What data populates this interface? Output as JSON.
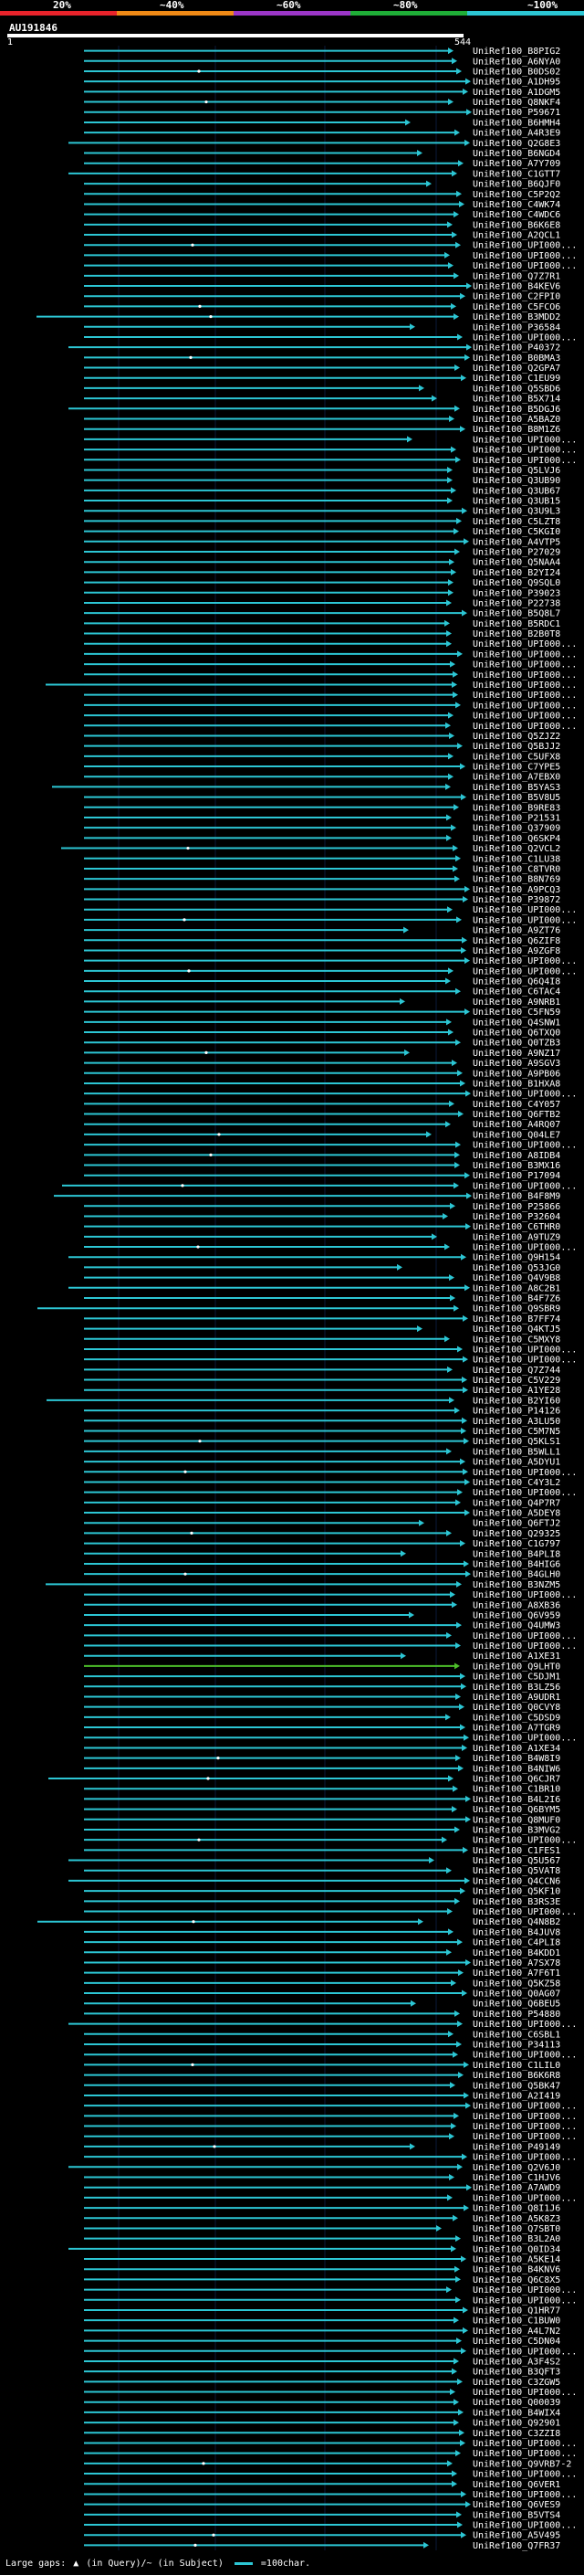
{
  "scale": {
    "labels": [
      "20%",
      "~40%",
      "~60%",
      "~80%",
      "~100%"
    ],
    "colors": [
      "#e8232b",
      "#f08a16",
      "#9b36c7",
      "#1fae37",
      "#2cc6d4"
    ]
  },
  "query": {
    "name": "AU191846",
    "start": "1",
    "end": "544"
  },
  "colors": {
    "hit_line": "#2cc6d4",
    "hit_line_green": "#4dbf2a",
    "background": "#000000",
    "grid": "#0a1a3a"
  },
  "footer": {
    "gaps_label": "Large gaps:",
    "gaps_text": "(in Query)/~ (in Subject)",
    "legend_text": "=100char."
  },
  "hits": [
    "UniRef100_B8PIG2",
    "UniRef100_A6NYA0",
    "UniRef100_B0DS02",
    "UniRef100_A1DH95",
    "UniRef100_A1DGM5",
    "UniRef100_Q8NKF4",
    "UniRef100_P59671",
    "UniRef100_B6HMH4",
    "UniRef100_A4R3E9",
    "UniRef100_Q2G8E3",
    "UniRef100_B6NGD4",
    "UniRef100_A7Y709",
    "UniRef100_C1GTT7",
    "UniRef100_B6QJF0",
    "UniRef100_C5P2Q2",
    "UniRef100_C4WK74",
    "UniRef100_C4WDC6",
    "UniRef100_B6K6E8",
    "UniRef100_A2QCL1",
    "UniRef100_UPI000...",
    "UniRef100_UPI000...",
    "UniRef100_UPI000...",
    "UniRef100_Q7Z7R1",
    "UniRef100_B4KEV6",
    "UniRef100_C2FPI0",
    "UniRef100_C5FCO6",
    "UniRef100_B3MDD2",
    "UniRef100_P36584",
    "UniRef100_UPI000...",
    "UniRef100_P40372",
    "UniRef100_B0BMA3",
    "UniRef100_Q2GPA7",
    "UniRef100_C1EU99",
    "UniRef100_Q5SBD6",
    "UniRef100_B5X714",
    "UniRef100_B5DGJ6",
    "UniRef100_A5BAZ0",
    "UniRef100_B8M1Z6",
    "UniRef100_UPI000...",
    "UniRef100_UPI000...",
    "UniRef100_UPI000...",
    "UniRef100_Q5LVJ6",
    "UniRef100_Q3UB90",
    "UniRef100_Q3UB67",
    "UniRef100_Q3UB15",
    "UniRef100_Q3U9L3",
    "UniRef100_C5LZT8",
    "UniRef100_C5KGI0",
    "UniRef100_A4VTP5",
    "UniRef100_P27029",
    "UniRef100_Q5NAA4",
    "UniRef100_B2YI24",
    "UniRef100_Q9SQL0",
    "UniRef100_P39023",
    "UniRef100_P22738",
    "UniRef100_B5Q8L7",
    "UniRef100_B5RDC1",
    "UniRef100_B2B0T8",
    "UniRef100_UPI000...",
    "UniRef100_UPI000...",
    "UniRef100_UPI000...",
    "UniRef100_UPI000...",
    "UniRef100_UPI000...",
    "UniRef100_UPI000...",
    "UniRef100_UPI000...",
    "UniRef100_UPI000...",
    "UniRef100_UPI000...",
    "UniRef100_Q5ZJZ2",
    "UniRef100_Q5BJJ2",
    "UniRef100_C5UFX8",
    "UniRef100_C7YPE5",
    "UniRef100_A7EBX0",
    "UniRef100_B5YAS3",
    "UniRef100_B5V8U5",
    "UniRef100_B9RE83",
    "UniRef100_P21531",
    "UniRef100_Q37909",
    "UniRef100_Q6SKP4",
    "UniRef100_Q2VCL2",
    "UniRef100_C1LU38",
    "UniRef100_C8TVR0",
    "UniRef100_B8N769",
    "UniRef100_A9PCQ3",
    "UniRef100_P39872",
    "UniRef100_UPI000...",
    "UniRef100_UPI000...",
    "UniRef100_A9ZT76",
    "UniRef100_Q6ZIF8",
    "UniRef100_A9ZGF8",
    "UniRef100_UPI000...",
    "UniRef100_UPI000...",
    "UniRef100_Q6Q4I8",
    "UniRef100_C6TAC4",
    "UniRef100_A9NRB1",
    "UniRef100_C5FN59",
    "UniRef100_Q4SNW1",
    "UniRef100_Q6TXQ0",
    "UniRef100_Q0TZB3",
    "UniRef100_A9NZ17",
    "UniRef100_A9SGV3",
    "UniRef100_A9PB06",
    "UniRef100_B1HXA8",
    "UniRef100_UPI000...",
    "UniRef100_C4Y057",
    "UniRef100_Q6FTB2",
    "UniRef100_A4RQ07",
    "UniRef100_Q04LE7",
    "UniRef100_UPI000...",
    "UniRef100_A8IDB4",
    "UniRef100_B3MX16",
    "UniRef100_P17094",
    "UniRef100_UPI000...",
    "UniRef100_B4F8M9",
    "UniRef100_P25866",
    "UniRef100_P32604",
    "UniRef100_C6THR0",
    "UniRef100_A9TUZ9",
    "UniRef100_UPI000...",
    "UniRef100_Q9H154",
    "UniRef100_Q53JG0",
    "UniRef100_Q4V9B8",
    "UniRef100_A8C2B1",
    "UniRef100_B4F7Z6",
    "UniRef100_Q9SBR9",
    "UniRef100_B7FF74",
    "UniRef100_Q4KTJ5",
    "UniRef100_C5MXY8",
    "UniRef100_UPI000...",
    "UniRef100_UPI000...",
    "UniRef100_Q7Z744",
    "UniRef100_C5V229",
    "UniRef100_A1YE28",
    "UniRef100_B2YI60",
    "UniRef100_P14126",
    "UniRef100_A3LU50",
    "UniRef100_C5M7N5",
    "UniRef100_Q5KLS1",
    "UniRef100_B5WLL1",
    "UniRef100_A5DYU1",
    "UniRef100_UPI000...",
    "UniRef100_C4Y3L2",
    "UniRef100_UPI000...",
    "UniRef100_Q4P7R7",
    "UniRef100_A5DEY8",
    "UniRef100_Q6FTJ2",
    "UniRef100_Q29325",
    "UniRef100_C1G797",
    "UniRef100_B4PLI8",
    "UniRef100_B4HIG6",
    "UniRef100_B4GLH0",
    "UniRef100_B3NZM5",
    "UniRef100_UPI000...",
    "UniRef100_A8XB36",
    "UniRef100_Q6V959",
    "UniRef100_Q4UMW3",
    "UniRef100_UPI000...",
    "UniRef100_UPI000...",
    "UniRef100_A1XE31",
    "UniRef100_Q9LHT0",
    "UniRef100_C5DJM1",
    "UniRef100_B3LZ56",
    "UniRef100_A9UDR1",
    "UniRef100_Q0CVY8",
    "UniRef100_C5DSD9",
    "UniRef100_A7TGR9",
    "UniRef100_UPI000...",
    "UniRef100_A1XE34",
    "UniRef100_B4W8I9",
    "UniRef100_B4NIW6",
    "UniRef100_Q6CJR7",
    "UniRef100_C1BR10",
    "UniRef100_B4L2I6",
    "UniRef100_Q6BYM5",
    "UniRef100_Q8MUF0",
    "UniRef100_B3MVG2",
    "UniRef100_UPI000...",
    "UniRef100_C1FES1",
    "UniRef100_Q5U567",
    "UniRef100_Q5VAT8",
    "UniRef100_Q4CCN6",
    "UniRef100_Q5KF10",
    "UniRef100_B3RS3E",
    "UniRef100_UPI000...",
    "UniRef100_Q4N8B2",
    "UniRef100_B4JUV8",
    "UniRef100_C4PLI8",
    "UniRef100_B4KDD1",
    "UniRef100_A7SX78",
    "UniRef100_A7F6T1",
    "UniRef100_Q5KZ58",
    "UniRef100_Q0AG07",
    "UniRef100_Q6BEU5",
    "UniRef100_P54880",
    "UniRef100_UPI000...",
    "UniRef100_C6SBL1",
    "UniRef100_P34113",
    "UniRef100_UPI000...",
    "UniRef100_C1LIL0",
    "UniRef100_B6K6R8",
    "UniRef100_Q5BK47",
    "UniRef100_A2I419",
    "UniRef100_UPI000...",
    "UniRef100_UPI000...",
    "UniRef100_UPI000...",
    "UniRef100_UPI000...",
    "UniRef100_P49149",
    "UniRef100_UPI000...",
    "UniRef100_Q2V6J0",
    "UniRef100_C1HJV6",
    "UniRef100_A7AWD9",
    "UniRef100_UPI000...",
    "UniRef100_Q8I1J6",
    "UniRef100_A5K8Z3",
    "UniRef100_Q7SBT0",
    "UniRef100_B3L2A0",
    "UniRef100_Q0ID34",
    "UniRef100_A5KE14",
    "UniRef100_B4KNV6",
    "UniRef100_Q6C8X5",
    "UniRef100_UPI000...",
    "UniRef100_UPI000...",
    "UniRef100_Q1HR77",
    "UniRef100_C1BUW0",
    "UniRef100_A4L7N2",
    "UniRef100_C5DN04",
    "UniRef100_UPI000...",
    "UniRef100_A3F4S2",
    "UniRef100_B3QFT3",
    "UniRef100_C3ZGW5",
    "UniRef100_UPI000...",
    "UniRef100_Q00039",
    "UniRef100_B4WIX4",
    "UniRef100_Q92901",
    "UniRef100_C3ZZI8",
    "UniRef100_UPI000...",
    "UniRef100_UPI000...",
    "UniRef100_Q9VRB7-2",
    "UniRef100_UPI000...",
    "UniRef100_Q6VER1",
    "UniRef100_UPI000...",
    "UniRef100_Q6VES9",
    "UniRef100_B5VTS4",
    "UniRef100_UPI000...",
    "UniRef100_A5V495",
    "UniRef100_Q7FR37"
  ]
}
